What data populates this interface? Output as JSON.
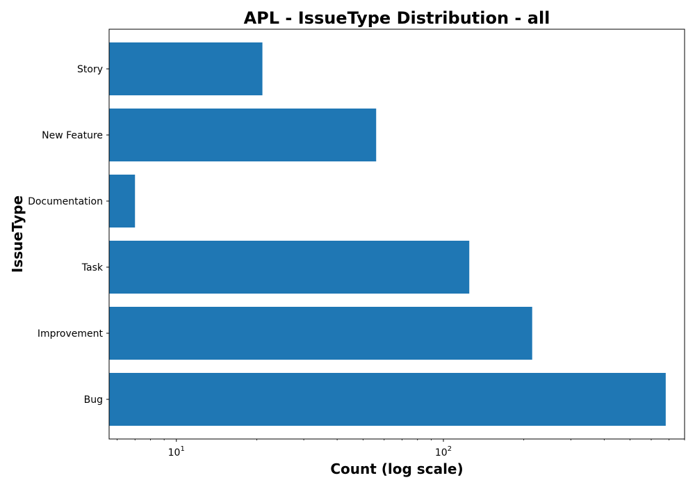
{
  "chart_data": {
    "type": "bar",
    "orientation": "horizontal",
    "title": "APL - IssueType Distribution - all",
    "xlabel": "Count (log scale)",
    "ylabel": "IssueType",
    "x_scale": "log",
    "xlim": [
      5.6,
      800
    ],
    "x_major_ticks": [
      {
        "value": 10,
        "base": "10",
        "exponent": "1"
      },
      {
        "value": 100,
        "base": "10",
        "exponent": "2"
      }
    ],
    "x_minor_ticks": [
      6,
      7,
      8,
      9,
      20,
      30,
      40,
      50,
      60,
      70,
      80,
      90,
      200,
      300,
      400,
      500,
      600,
      700,
      800
    ],
    "categories": [
      "Bug",
      "Improvement",
      "Task",
      "Documentation",
      "New Feature",
      "Story"
    ],
    "values": [
      680,
      215,
      125,
      7,
      56,
      21
    ],
    "bar_color": "#1f77b4",
    "grid": false,
    "legend": "none"
  }
}
